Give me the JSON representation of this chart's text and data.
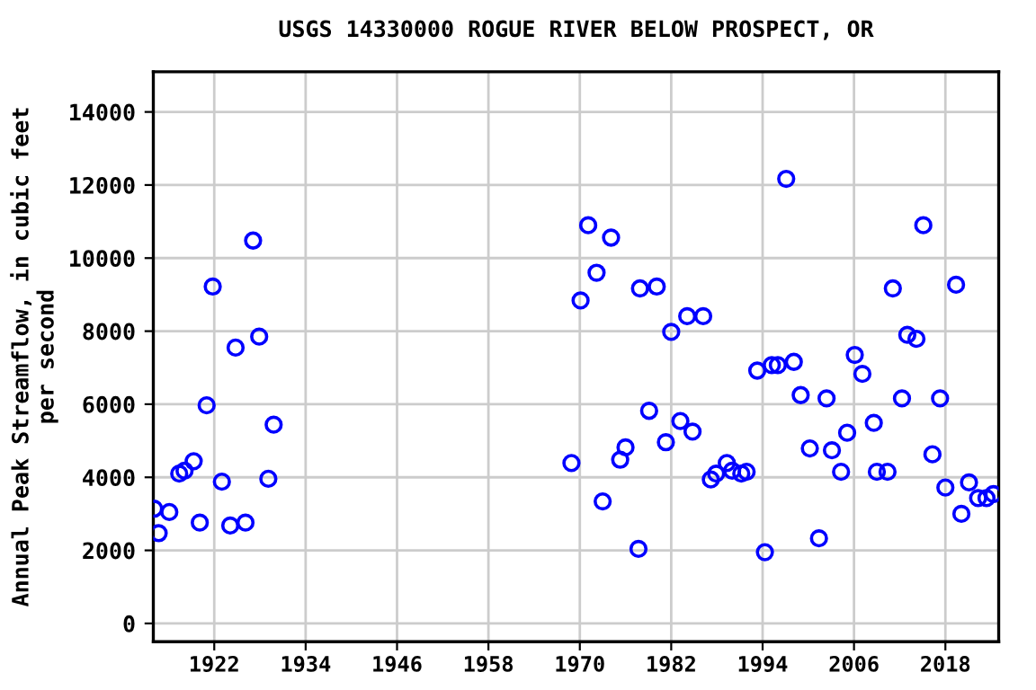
{
  "chart_data": {
    "type": "scatter",
    "title": "USGS 14330000 ROGUE RIVER BELOW PROSPECT, OR",
    "ylabel": "Annual Peak Streamflow, in cubic feet\nper second",
    "x": [
      1914.1,
      1914.7,
      1916.1,
      1917.4,
      1918.1,
      1919.3,
      1920.1,
      1921,
      1921.8,
      1923,
      1924.1,
      1924.8,
      1926.1,
      1927.1,
      1927.9,
      1929.1,
      1929.8,
      1968.9,
      1970.1,
      1971.1,
      1972.2,
      1973,
      1974.1,
      1975.3,
      1976,
      1977.7,
      1977.9,
      1979.1,
      1980.1,
      1981.3,
      1982,
      1983.2,
      1984.1,
      1984.8,
      1986.2,
      1987.2,
      1987.9,
      1989.3,
      1990,
      1991.2,
      1991.9,
      1993.3,
      1994.3,
      1995.2,
      1996,
      1997.1,
      1998.1,
      1999,
      2000.2,
      2001.4,
      2002.4,
      2003.1,
      2004.3,
      2005.1,
      2006.1,
      2007.1,
      2008.6,
      2009,
      2010.4,
      2011.1,
      2012.3,
      2013,
      2014.2,
      2015.1,
      2016.3,
      2017.3,
      2018,
      2019.4,
      2020.1,
      2021.1,
      2022.3,
      2023.4,
      2024.3
    ],
    "series": [
      {
        "color": "#0000ff",
        "values": [
          3140,
          2470,
          3050,
          4100,
          4180,
          4440,
          2760,
          5970,
          9220,
          3880,
          2680,
          7550,
          2760,
          10480,
          7850,
          3960,
          5440,
          4390,
          8840,
          10900,
          9600,
          3340,
          10560,
          4480,
          4820,
          2040,
          9170,
          5820,
          9220,
          4960,
          7980,
          5540,
          8410,
          5250,
          8410,
          3940,
          4100,
          4390,
          4180,
          4100,
          4150,
          6920,
          1950,
          7070,
          7070,
          12170,
          7160,
          6250,
          4790,
          2330,
          6160,
          4740,
          4150,
          5220,
          7350,
          6830,
          5490,
          4150,
          4150,
          9170,
          6160,
          7900,
          7790,
          10900,
          4630,
          6160,
          3720,
          9270,
          3000,
          3860,
          3430,
          3430,
          3540
        ]
      }
    ],
    "xlim": [
      1914,
      2025
    ],
    "ylim": [
      -500,
      15100
    ],
    "xticks": [
      1922,
      1934,
      1946,
      1958,
      1970,
      1982,
      1994,
      2006,
      2018
    ],
    "yticks": [
      0,
      2000,
      4000,
      6000,
      8000,
      10000,
      12000,
      14000
    ],
    "grid": true,
    "marker": "circle",
    "legend": false
  }
}
